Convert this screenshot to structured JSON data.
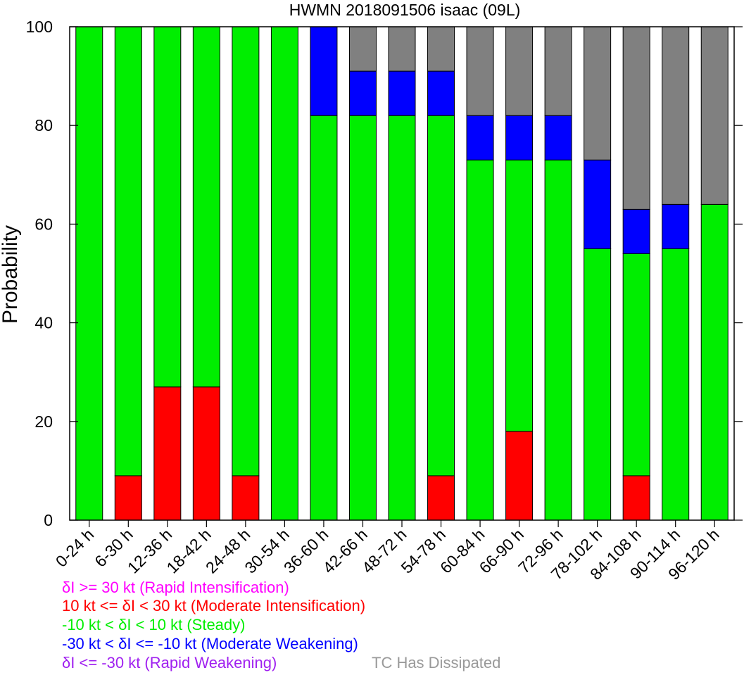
{
  "chart_data": {
    "type": "bar",
    "stacked": true,
    "title": "HWMN 2018091506 isaac (09L)",
    "xlabel": "",
    "ylabel": "Probability",
    "ylim": [
      0,
      100
    ],
    "yticks": [
      0,
      20,
      40,
      60,
      80,
      100
    ],
    "categories": [
      "0-24 h",
      "6-30 h",
      "12-36 h",
      "18-42 h",
      "24-48 h",
      "30-54 h",
      "36-60 h",
      "42-66 h",
      "48-72 h",
      "54-78 h",
      "60-84 h",
      "66-90 h",
      "72-96 h",
      "78-102 h",
      "84-108 h",
      "90-114 h",
      "96-120 h"
    ],
    "series": [
      {
        "name": "Rapid Intensification",
        "color": "#ff00ff",
        "values": [
          0,
          0,
          0,
          0,
          0,
          0,
          0,
          0,
          0,
          0,
          0,
          0,
          0,
          0,
          0,
          0,
          0
        ]
      },
      {
        "name": "Moderate Intensification",
        "color": "#ff0000",
        "values": [
          0,
          9,
          27,
          27,
          9,
          0,
          0,
          0,
          0,
          9,
          0,
          18,
          0,
          0,
          9,
          0,
          0
        ]
      },
      {
        "name": "Steady",
        "color": "#00ee00",
        "values": [
          100,
          91,
          73,
          73,
          91,
          100,
          82,
          82,
          82,
          73,
          73,
          55,
          73,
          55,
          45,
          55,
          64
        ]
      },
      {
        "name": "Moderate Weakening",
        "color": "#0000ff",
        "values": [
          0,
          0,
          0,
          0,
          0,
          0,
          18,
          9,
          9,
          9,
          9,
          9,
          9,
          18,
          9,
          9,
          0
        ]
      },
      {
        "name": "Rapid Weakening",
        "color": "#a020f0",
        "values": [
          0,
          0,
          0,
          0,
          0,
          0,
          0,
          0,
          0,
          0,
          0,
          0,
          0,
          0,
          0,
          0,
          0
        ]
      },
      {
        "name": "TC Has Dissipated",
        "color": "#808080",
        "values": [
          0,
          0,
          0,
          0,
          0,
          0,
          0,
          9,
          9,
          9,
          18,
          18,
          18,
          27,
          37,
          36,
          36
        ]
      }
    ],
    "grid": false,
    "legend_position": "bottom-left"
  },
  "legend": [
    {
      "text": "δI >= 30 kt (Rapid Intensification)",
      "color": "#ff00ff"
    },
    {
      "text": "10 kt <= δI < 30 kt (Moderate Intensification)",
      "color": "#ff0000"
    },
    {
      "text": "-10 kt < δI < 10 kt (Steady)",
      "color": "#00ee00"
    },
    {
      "text": "-30 kt < δI <= -10 kt (Moderate Weakening)",
      "color": "#0000ff"
    },
    {
      "text": "δI <= -30 kt (Rapid Weakening)",
      "color": "#a020f0"
    },
    {
      "text": "TC Has Dissipated",
      "color": "#999999"
    }
  ]
}
